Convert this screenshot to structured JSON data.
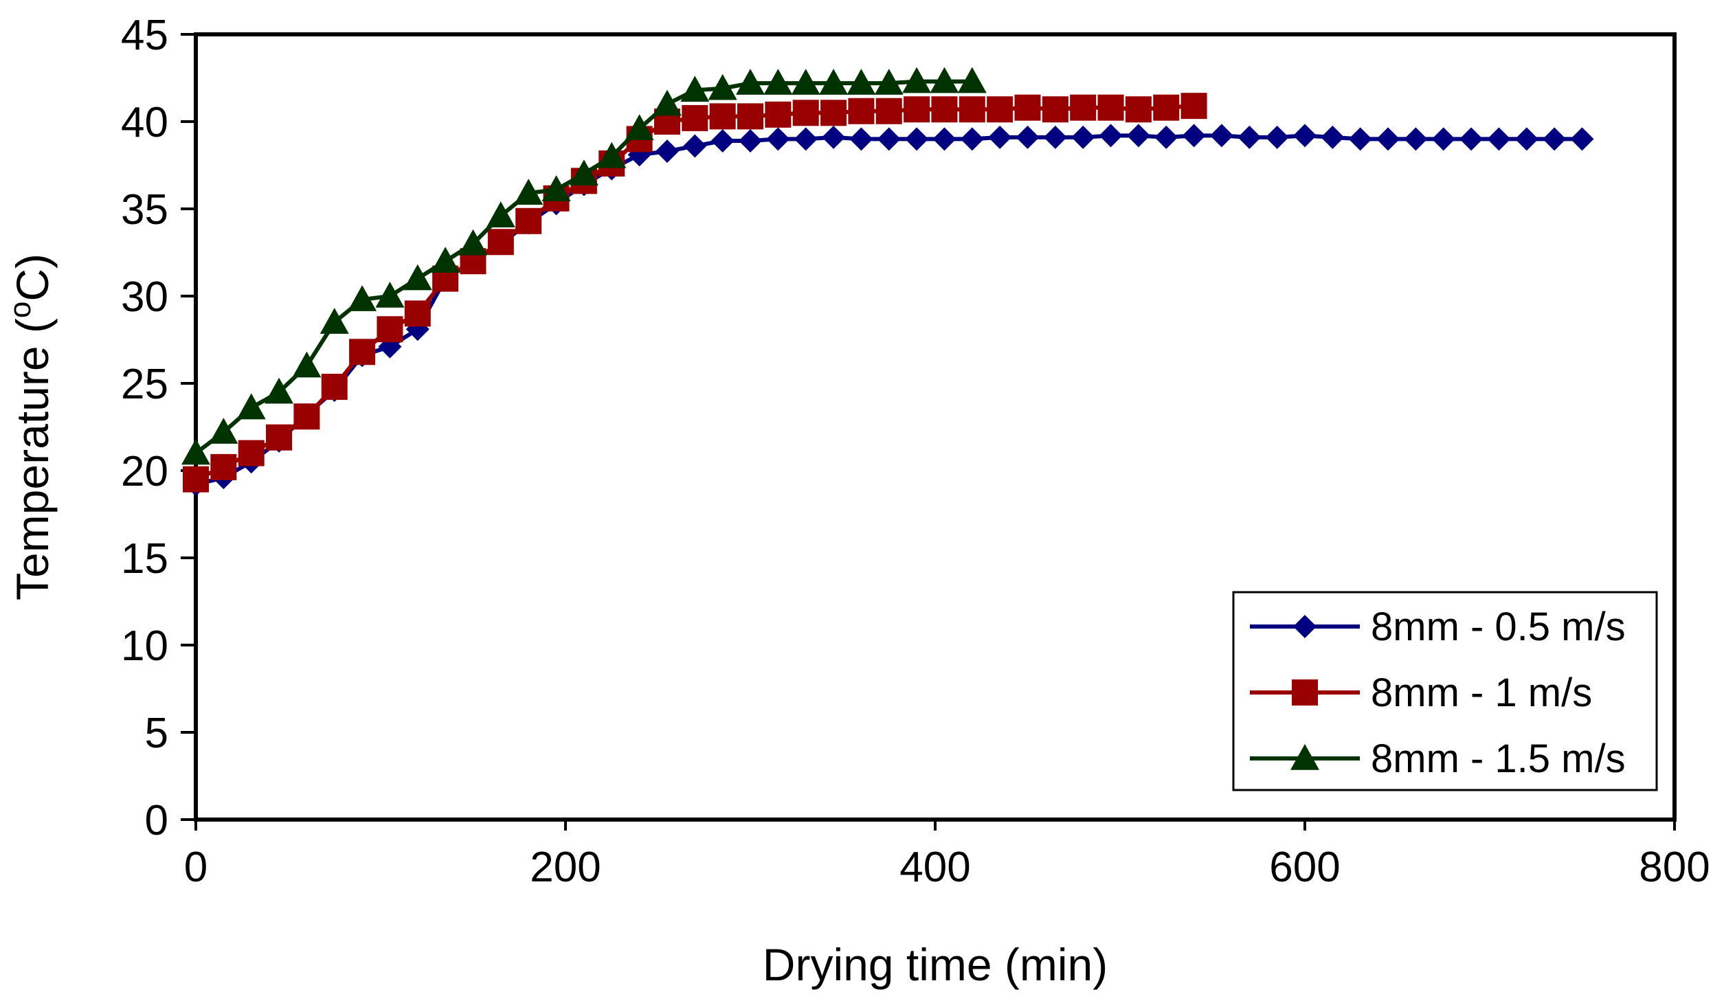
{
  "chart_data": {
    "type": "line",
    "title": "",
    "xlabel": "Drying time (min)",
    "ylabel_parts": {
      "prefix": "Temperature (",
      "superscript": "o",
      "suffix": "C)"
    },
    "xlim": [
      0,
      800
    ],
    "ylim": [
      0,
      45
    ],
    "xticks": [
      0,
      200,
      400,
      600,
      800
    ],
    "yticks": [
      0,
      5,
      10,
      15,
      20,
      25,
      30,
      35,
      40,
      45
    ],
    "grid": false,
    "legend_position": "bottom-right",
    "series": [
      {
        "name": "8mm - 0.5 m/s",
        "color": "#000080",
        "marker": "diamond",
        "x": [
          0,
          15,
          30,
          45,
          60,
          75,
          90,
          105,
          120,
          135,
          150,
          165,
          180,
          195,
          210,
          225,
          240,
          255,
          270,
          285,
          300,
          315,
          330,
          345,
          360,
          375,
          390,
          405,
          420,
          435,
          450,
          465,
          480,
          495,
          510,
          525,
          540,
          555,
          570,
          585,
          600,
          615,
          630,
          645,
          660,
          675,
          690,
          705,
          720,
          735,
          750
        ],
        "y": [
          19.2,
          19.6,
          20.5,
          21.7,
          23.2,
          24.6,
          26.6,
          27.1,
          28.1,
          31,
          32,
          33,
          34.2,
          35.3,
          36.4,
          37.3,
          38.1,
          38.3,
          38.6,
          38.9,
          38.9,
          39,
          39,
          39.1,
          39,
          39,
          39,
          39,
          39,
          39.1,
          39.1,
          39.1,
          39.1,
          39.2,
          39.2,
          39.1,
          39.2,
          39.2,
          39.1,
          39.1,
          39.2,
          39.1,
          39,
          39,
          39,
          39,
          39,
          39,
          39,
          39,
          39
        ]
      },
      {
        "name": "8mm - 1 m/s",
        "color": "#990000",
        "marker": "square",
        "x": [
          0,
          15,
          30,
          45,
          60,
          75,
          90,
          105,
          120,
          135,
          150,
          165,
          180,
          195,
          210,
          225,
          240,
          255,
          270,
          285,
          300,
          315,
          330,
          345,
          360,
          375,
          390,
          405,
          420,
          435,
          450,
          465,
          480,
          495,
          510,
          525,
          540
        ],
        "y": [
          19.5,
          20.2,
          21,
          21.9,
          23.1,
          24.8,
          26.8,
          28.1,
          29,
          31,
          32,
          33.1,
          34.3,
          35.6,
          36.6,
          37.6,
          39,
          40,
          40.2,
          40.3,
          40.3,
          40.4,
          40.5,
          40.5,
          40.6,
          40.6,
          40.7,
          40.7,
          40.7,
          40.7,
          40.8,
          40.7,
          40.8,
          40.8,
          40.7,
          40.8,
          40.9
        ]
      },
      {
        "name": "8mm - 1.5 m/s",
        "color": "#003300",
        "marker": "triangle",
        "x": [
          0,
          15,
          30,
          45,
          60,
          75,
          90,
          105,
          120,
          135,
          150,
          165,
          180,
          195,
          210,
          225,
          240,
          255,
          270,
          285,
          300,
          315,
          330,
          345,
          360,
          375,
          390,
          405,
          420
        ],
        "y": [
          21,
          22.2,
          23.6,
          24.5,
          26,
          28.5,
          29.8,
          30,
          31,
          32,
          33,
          34.6,
          35.9,
          36.1,
          37,
          38,
          39.6,
          41,
          41.8,
          41.9,
          42.2,
          42.2,
          42.2,
          42.2,
          42.2,
          42.2,
          42.3,
          42.3,
          42.3
        ]
      }
    ]
  }
}
